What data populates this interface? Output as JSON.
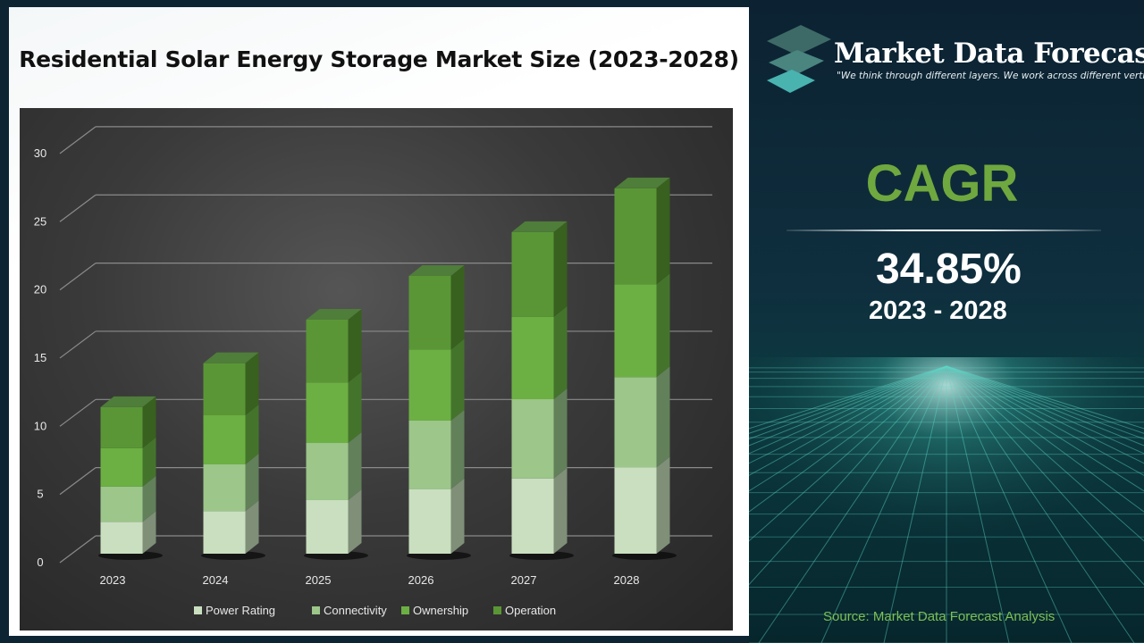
{
  "title": "Residential Solar Energy Storage Market Size (2023-2028)",
  "brand": {
    "name": "Market Data Forecast",
    "tagline": "\"We think through different layers. We work across different verticals\""
  },
  "cagr": {
    "label": "CAGR",
    "value": "34.85%",
    "period": "2023 - 2028"
  },
  "source": "Source: Market Data Forecast Analysis",
  "colors": {
    "Power Rating": "#c9dfbf",
    "Connectivity": "#9cc68a",
    "Ownership": "#6cb043",
    "Operation": "#5a9636",
    "cagr_green": "#6fa83f"
  },
  "chart_data": {
    "type": "bar",
    "stacked": true,
    "style": "3d",
    "categories": [
      "2023",
      "2024",
      "2025",
      "2026",
      "2027",
      "2028"
    ],
    "series": [
      {
        "name": "Power Rating",
        "values": [
          2.34,
          3.12,
          3.93,
          4.74,
          5.52,
          6.33
        ]
      },
      {
        "name": "Connectivity",
        "values": [
          2.58,
          3.43,
          4.19,
          5.02,
          5.81,
          6.62
        ]
      },
      {
        "name": "Ownership",
        "values": [
          2.82,
          3.6,
          4.43,
          5.2,
          6.03,
          6.81
        ]
      },
      {
        "name": "Operation",
        "values": [
          3.01,
          3.82,
          4.61,
          5.41,
          6.22,
          7.03
        ]
      }
    ],
    "yticks": [
      "0",
      "5",
      "10",
      "15",
      "20",
      "25",
      "30"
    ],
    "ylim": [
      0,
      30
    ],
    "grid": true,
    "legend": "bottom"
  }
}
